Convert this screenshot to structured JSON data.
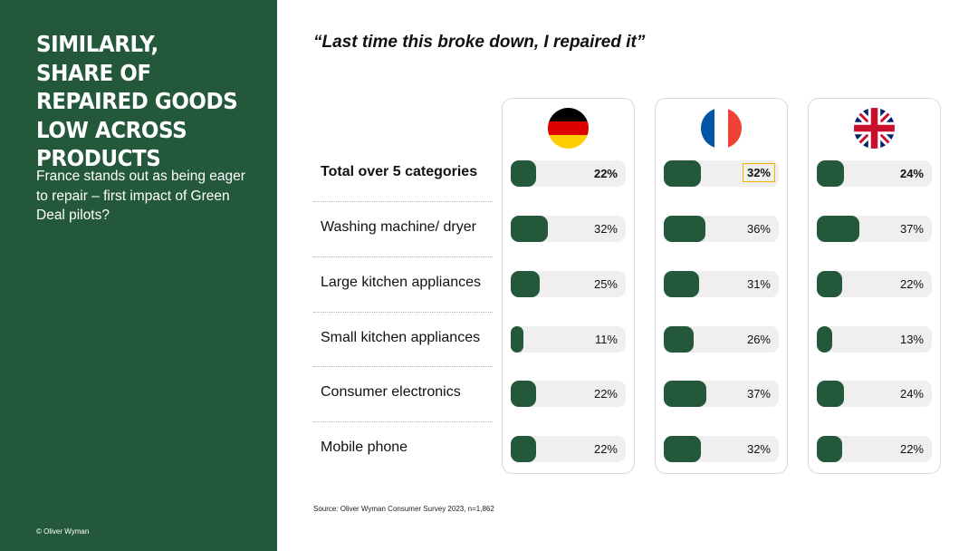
{
  "sidebar": {
    "title": "Similarly, share of repaired goods low across products",
    "subtitle": "France stands out as being eager to repair – first impact of Green Deal pilots?",
    "copyright": "© Oliver Wyman"
  },
  "quote": "“Last time this broke down, I repaired it”",
  "source": "Source: Oliver Wyman Consumer Survey 2023, n=1,862",
  "colors": {
    "brand_green": "#23583a",
    "highlight": "#f2b300",
    "track": "#efefef"
  },
  "chart_data": {
    "type": "bar",
    "categories": [
      "Total over 5 categories",
      "Washing machine/ dryer",
      "Large kitchen appliances",
      "Small kitchen appliances",
      "Consumer electronics",
      "Mobile phone"
    ],
    "series": [
      {
        "flag_icon": "germany-flag-icon",
        "values": [
          22,
          32,
          25,
          11,
          22,
          22
        ],
        "labels": [
          "22%",
          "32%",
          "25%",
          "11%",
          "22%",
          "22%"
        ]
      },
      {
        "flag_icon": "france-flag-icon",
        "values": [
          32,
          36,
          31,
          26,
          37,
          32
        ],
        "labels": [
          "32%",
          "36%",
          "31%",
          "26%",
          "37%",
          "32%"
        ]
      },
      {
        "flag_icon": "uk-flag-icon",
        "values": [
          24,
          37,
          22,
          13,
          24,
          22
        ],
        "labels": [
          "24%",
          "37%",
          "22%",
          "13%",
          "24%",
          "22%"
        ]
      }
    ],
    "highlighted": {
      "series": 1,
      "category": 0
    },
    "ylim": [
      0,
      100
    ]
  }
}
